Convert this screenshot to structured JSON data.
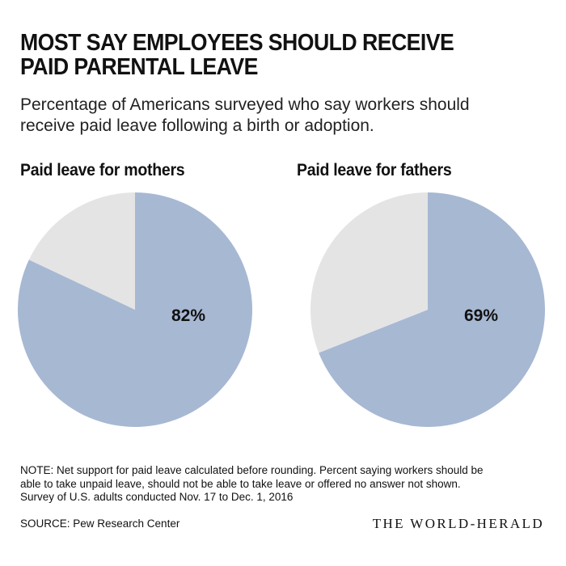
{
  "header": {
    "title_lines": [
      "MOST SAY EMPLOYEES SHOULD RECEIVE",
      "PAID PARENTAL LEAVE"
    ],
    "subtitle_lines": [
      "Percentage of Americans surveyed who say workers should",
      "receive paid leave following a birth or adoption."
    ]
  },
  "chart_data": [
    {
      "type": "pie",
      "title": "Paid leave for mothers",
      "slices": [
        {
          "value": 82,
          "label": "82%",
          "color": "#a7b8d3"
        },
        {
          "value": 18,
          "label": "",
          "color": "#e4e4e4"
        }
      ]
    },
    {
      "type": "pie",
      "title": "Paid leave for fathers",
      "slices": [
        {
          "value": 69,
          "label": "69%",
          "color": "#a7b8d3"
        },
        {
          "value": 31,
          "label": "",
          "color": "#e4e4e4"
        }
      ]
    }
  ],
  "footer": {
    "note_lines": [
      "NOTE: Net support for paid leave calculated before rounding. Percent saying workers should be",
      "able to take unpaid leave, should not be able to take leave or offered no answer not shown.",
      "Survey of U.S. adults conducted Nov. 17 to Dec. 1, 2016"
    ],
    "source": "SOURCE: Pew Research Center",
    "brand": "THE WORLD-HERALD"
  },
  "colors": {
    "support": "#a7b8d3",
    "remainder": "#e4e4e4",
    "text": "#111111"
  }
}
